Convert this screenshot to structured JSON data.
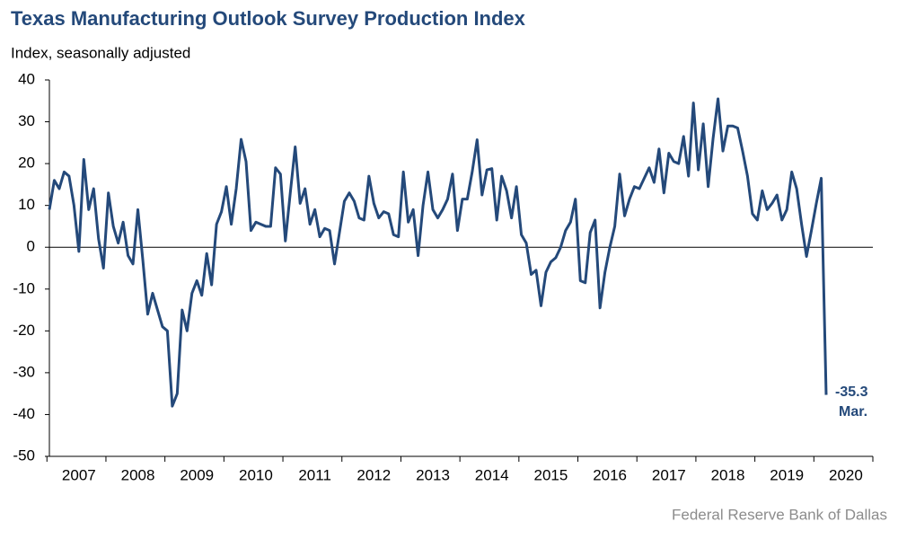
{
  "chart_data": {
    "type": "line",
    "title": "Texas Manufacturing Outlook Survey Production Index",
    "subtitle": "Index, seasonally adjusted",
    "source": "Federal Reserve Bank of Dallas",
    "annotation": "Mar.",
    "categories": [
      "2007",
      null,
      null,
      null,
      null,
      null,
      null,
      null,
      null,
      null,
      null,
      null,
      "2008",
      null,
      null,
      null,
      null,
      null,
      null,
      null,
      null,
      null,
      null,
      null,
      "2009",
      null,
      null,
      null,
      null,
      null,
      null,
      null,
      null,
      null,
      null,
      null,
      "2010",
      null,
      null,
      null,
      null,
      null,
      null,
      null,
      null,
      null,
      null,
      null,
      "2011",
      null,
      null,
      null,
      null,
      null,
      null,
      null,
      null,
      null,
      null,
      null,
      "2012",
      null,
      null,
      null,
      null,
      null,
      null,
      null,
      null,
      null,
      null,
      null,
      "2013",
      null,
      null,
      null,
      null,
      null,
      null,
      null,
      null,
      null,
      null,
      null,
      "2014",
      null,
      null,
      null,
      null,
      null,
      null,
      null,
      null,
      null,
      null,
      null,
      "2015",
      null,
      null,
      null,
      null,
      null,
      null,
      null,
      null,
      null,
      null,
      null,
      "2016",
      null,
      null,
      null,
      null,
      null,
      null,
      null,
      null,
      null,
      null,
      null,
      "2017",
      null,
      null,
      null,
      null,
      null,
      null,
      null,
      null,
      null,
      null,
      null,
      "2018",
      null,
      null,
      null,
      null,
      null,
      null,
      null,
      null,
      null,
      null,
      null,
      "2019",
      null,
      null,
      null,
      null,
      null,
      null,
      null,
      null,
      null,
      null,
      null,
      "2020",
      null,
      null
    ],
    "series": [
      {
        "name": "Production Index",
        "color": "#24497a",
        "values": [
          9,
          16,
          14,
          18,
          17,
          10,
          -1,
          21,
          9,
          14,
          2,
          -5,
          13,
          5,
          1,
          6,
          -2,
          -4,
          9,
          -3,
          -16,
          -11,
          -15,
          -19,
          -20,
          -38,
          -35,
          -15,
          -20,
          -11,
          -8,
          -11.5,
          -1.5,
          -9,
          5.5,
          8.5,
          14.5,
          5.5,
          14,
          25.8,
          20.5,
          4,
          6,
          5.5,
          5,
          5,
          19,
          17.5,
          1.5,
          13,
          24,
          10.5,
          14,
          5.5,
          9,
          2.5,
          4.5,
          4,
          -4,
          3.5,
          11,
          13,
          11,
          7,
          6.5,
          17,
          10.5,
          7,
          8.5,
          8,
          3,
          2.5,
          18,
          6,
          9,
          -2,
          10,
          18,
          9,
          7,
          9,
          11.5,
          17.5,
          4,
          11.5,
          11.5,
          18,
          25.7,
          12.5,
          18.5,
          18.8,
          6.5,
          17,
          13.5,
          7,
          14.5,
          3,
          1,
          -6.5,
          -5.5,
          -14,
          -6,
          -3.5,
          -2.5,
          0,
          4,
          6,
          11.5,
          -8,
          -8.5,
          3.5,
          6.5,
          -14.5,
          -6,
          0,
          5,
          17.5,
          7.5,
          11.5,
          14.5,
          14,
          16.5,
          19,
          15.5,
          23.5,
          13,
          22.5,
          20.5,
          20,
          26.5,
          17,
          34.5,
          18.5,
          29.5,
          14.5,
          26,
          35.5,
          23,
          29,
          29,
          28.5,
          23,
          17,
          8,
          6.5,
          13.5,
          9,
          10.5,
          12.5,
          6.5,
          9,
          18,
          14,
          5.5,
          -2.2,
          4,
          10.5,
          16.5,
          -35.3
        ]
      }
    ],
    "ylim": [
      -50,
      40
    ],
    "yticks": [
      -50,
      -40,
      -30,
      -20,
      -10,
      0,
      10,
      20,
      30,
      40
    ],
    "grid": false
  }
}
